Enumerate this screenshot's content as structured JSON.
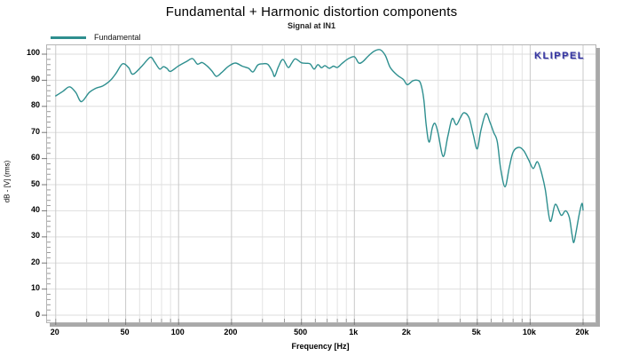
{
  "header": {
    "title": "Fundamental + Harmonic distortion components",
    "subtitle": "Signal at IN1"
  },
  "branding": {
    "logo_text": "KLIPPEL",
    "logo_color": "#3333a0"
  },
  "chart_data": {
    "type": "line",
    "title": "Fundamental + Harmonic distortion components",
    "subtitle": "Signal at IN1",
    "xlabel": "Frequency [Hz]",
    "ylabel": "dB - [V]  (rms)",
    "x_scale": "log",
    "x_range_hz": [
      17.85,
      23530
    ],
    "y_range_db": [
      -2.7,
      103.4
    ],
    "grid": "on",
    "legend_position": "top-left",
    "colors": {
      "series": "#2e8f8f",
      "major_grid": "#c9c9c9",
      "minor_grid": "#e3e3e3",
      "h_grid": "#dedede",
      "tick": "#9a9a9a",
      "frame": "#b5b5b5"
    },
    "x_major_ticks": [
      {
        "f": 20,
        "label": "20"
      },
      {
        "f": 50,
        "label": "50"
      },
      {
        "f": 100,
        "label": "100"
      },
      {
        "f": 200,
        "label": "200"
      },
      {
        "f": 500,
        "label": "500"
      },
      {
        "f": 1000,
        "label": "1k"
      },
      {
        "f": 2000,
        "label": "2k"
      },
      {
        "f": 5000,
        "label": "5k"
      },
      {
        "f": 10000,
        "label": "10k"
      },
      {
        "f": 20000,
        "label": "20k"
      }
    ],
    "x_minor_gridlines": [
      30,
      40,
      60,
      70,
      80,
      90,
      300,
      400,
      600,
      700,
      800,
      900,
      3000,
      4000,
      6000,
      7000,
      8000,
      9000
    ],
    "y_ticks": [
      0,
      10,
      20,
      30,
      40,
      50,
      60,
      70,
      80,
      90,
      100
    ],
    "y_minor_step_db": 2,
    "series": [
      {
        "name": "Fundamental",
        "color": "#2e8f8f",
        "points": [
          [
            20,
            84
          ],
          [
            22,
            85.8
          ],
          [
            24,
            87.5
          ],
          [
            26,
            85.3
          ],
          [
            28,
            81.8
          ],
          [
            31,
            85.3
          ],
          [
            34,
            87
          ],
          [
            37,
            87.8
          ],
          [
            41,
            90
          ],
          [
            44,
            92.6
          ],
          [
            48,
            96.3
          ],
          [
            52,
            94.8
          ],
          [
            55,
            92.3
          ],
          [
            62,
            95.5
          ],
          [
            69,
            98.8
          ],
          [
            73,
            97
          ],
          [
            78,
            94.3
          ],
          [
            82,
            95.2
          ],
          [
            86,
            94.5
          ],
          [
            90,
            93.4
          ],
          [
            100,
            95.5
          ],
          [
            111,
            97.2
          ],
          [
            120,
            98.3
          ],
          [
            128,
            96.2
          ],
          [
            136,
            96.8
          ],
          [
            145,
            95.5
          ],
          [
            155,
            93.5
          ],
          [
            164,
            91.5
          ],
          [
            176,
            93
          ],
          [
            192,
            95.3
          ],
          [
            210,
            96.6
          ],
          [
            230,
            95.4
          ],
          [
            250,
            94.6
          ],
          [
            265,
            93.2
          ],
          [
            282,
            95.8
          ],
          [
            300,
            96.3
          ],
          [
            322,
            96.1
          ],
          [
            342,
            93.3
          ],
          [
            352,
            91.5
          ],
          [
            370,
            95.2
          ],
          [
            392,
            98
          ],
          [
            420,
            94.9
          ],
          [
            442,
            96.8
          ],
          [
            462,
            98.2
          ],
          [
            500,
            96.7
          ],
          [
            530,
            96.5
          ],
          [
            560,
            96.3
          ],
          [
            590,
            94.3
          ],
          [
            620,
            96
          ],
          [
            650,
            94.8
          ],
          [
            680,
            95.6
          ],
          [
            720,
            94.6
          ],
          [
            760,
            95.4
          ],
          [
            800,
            94.9
          ],
          [
            850,
            96.4
          ],
          [
            920,
            98.2
          ],
          [
            1000,
            99
          ],
          [
            1060,
            96.6
          ],
          [
            1120,
            97.2
          ],
          [
            1200,
            99.3
          ],
          [
            1300,
            101.2
          ],
          [
            1400,
            101.7
          ],
          [
            1500,
            99.5
          ],
          [
            1600,
            94.9
          ],
          [
            1750,
            92
          ],
          [
            1900,
            90.3
          ],
          [
            2000,
            88.3
          ],
          [
            2150,
            89.8
          ],
          [
            2280,
            90
          ],
          [
            2380,
            88.8
          ],
          [
            2480,
            83
          ],
          [
            2560,
            73
          ],
          [
            2660,
            66.3
          ],
          [
            2780,
            72
          ],
          [
            2880,
            73.4
          ],
          [
            3000,
            69.5
          ],
          [
            3200,
            60.8
          ],
          [
            3400,
            68.5
          ],
          [
            3600,
            75.3
          ],
          [
            3800,
            72.9
          ],
          [
            4000,
            75.5
          ],
          [
            4200,
            77.6
          ],
          [
            4500,
            75.5
          ],
          [
            4750,
            69
          ],
          [
            5000,
            63.7
          ],
          [
            5250,
            71
          ],
          [
            5600,
            77.2
          ],
          [
            5900,
            74
          ],
          [
            6200,
            70
          ],
          [
            6500,
            66.5
          ],
          [
            6800,
            56
          ],
          [
            7200,
            49.2
          ],
          [
            7600,
            56.5
          ],
          [
            8000,
            62.5
          ],
          [
            8600,
            64.3
          ],
          [
            9200,
            63
          ],
          [
            9800,
            59.5
          ],
          [
            10400,
            56.2
          ],
          [
            11000,
            58.8
          ],
          [
            11600,
            54.5
          ],
          [
            12200,
            48
          ],
          [
            13000,
            36
          ],
          [
            13900,
            42.5
          ],
          [
            15000,
            38.3
          ],
          [
            15900,
            40
          ],
          [
            16700,
            37.5
          ],
          [
            17300,
            31
          ],
          [
            17700,
            27.8
          ],
          [
            18200,
            31.5
          ],
          [
            19000,
            38.5
          ],
          [
            19700,
            42.8
          ],
          [
            20000,
            40.3
          ]
        ]
      }
    ]
  }
}
